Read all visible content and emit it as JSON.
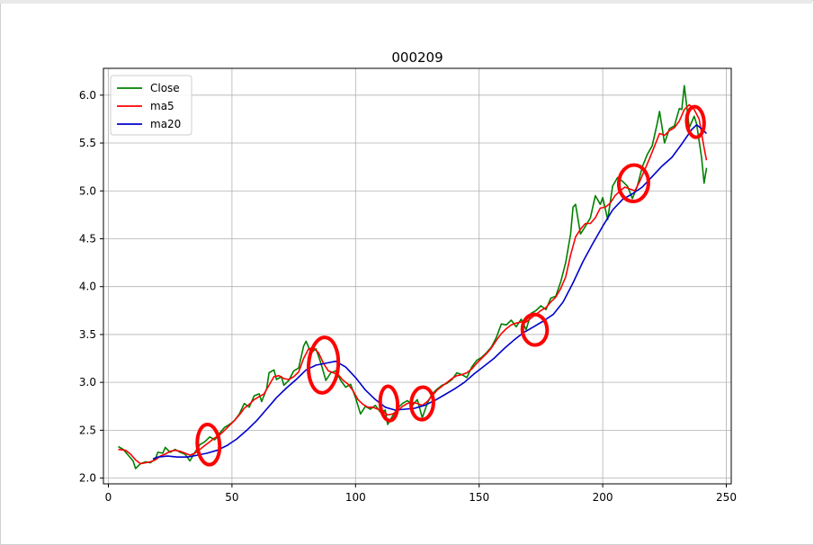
{
  "chart_data": {
    "type": "line",
    "title": "000209",
    "xlabel": "",
    "ylabel": "",
    "xlim": [
      -2,
      252
    ],
    "ylim": [
      1.94,
      6.28
    ],
    "xticks": [
      0,
      50,
      100,
      150,
      200,
      250
    ],
    "yticks": [
      2.0,
      2.5,
      3.0,
      3.5,
      4.0,
      4.5,
      5.0,
      5.5,
      6.0
    ],
    "grid": true,
    "legend_position": "upper-left",
    "series": [
      {
        "name": "Close",
        "color": "#008000",
        "points": [
          [
            4,
            2.33
          ],
          [
            6,
            2.3
          ],
          [
            8,
            2.24
          ],
          [
            10,
            2.18
          ],
          [
            11,
            2.1
          ],
          [
            13,
            2.15
          ],
          [
            15,
            2.17
          ],
          [
            17,
            2.16
          ],
          [
            19,
            2.2
          ],
          [
            20,
            2.27
          ],
          [
            22,
            2.26
          ],
          [
            23,
            2.32
          ],
          [
            25,
            2.27
          ],
          [
            27,
            2.3
          ],
          [
            29,
            2.27
          ],
          [
            31,
            2.25
          ],
          [
            33,
            2.18
          ],
          [
            35,
            2.27
          ],
          [
            37,
            2.35
          ],
          [
            39,
            2.38
          ],
          [
            41,
            2.43
          ],
          [
            43,
            2.4
          ],
          [
            45,
            2.47
          ],
          [
            47,
            2.53
          ],
          [
            49,
            2.56
          ],
          [
            51,
            2.6
          ],
          [
            53,
            2.67
          ],
          [
            55,
            2.78
          ],
          [
            57,
            2.74
          ],
          [
            59,
            2.86
          ],
          [
            61,
            2.88
          ],
          [
            62,
            2.8
          ],
          [
            64,
            2.93
          ],
          [
            65,
            3.1
          ],
          [
            67,
            3.13
          ],
          [
            68,
            3.03
          ],
          [
            70,
            3.06
          ],
          [
            71,
            2.97
          ],
          [
            73,
            3.02
          ],
          [
            75,
            3.12
          ],
          [
            77,
            3.15
          ],
          [
            79,
            3.38
          ],
          [
            80,
            3.43
          ],
          [
            82,
            3.31
          ],
          [
            84,
            3.35
          ],
          [
            86,
            3.2
          ],
          [
            88,
            3.02
          ],
          [
            90,
            3.1
          ],
          [
            92,
            3.12
          ],
          [
            94,
            3.02
          ],
          [
            96,
            2.95
          ],
          [
            98,
            2.98
          ],
          [
            100,
            2.84
          ],
          [
            102,
            2.67
          ],
          [
            104,
            2.75
          ],
          [
            106,
            2.72
          ],
          [
            108,
            2.76
          ],
          [
            110,
            2.69
          ],
          [
            112,
            2.71
          ],
          [
            113,
            2.56
          ],
          [
            115,
            2.65
          ],
          [
            117,
            2.73
          ],
          [
            119,
            2.78
          ],
          [
            121,
            2.81
          ],
          [
            123,
            2.76
          ],
          [
            125,
            2.82
          ],
          [
            127,
            2.63
          ],
          [
            129,
            2.78
          ],
          [
            131,
            2.88
          ],
          [
            133,
            2.93
          ],
          [
            135,
            2.97
          ],
          [
            137,
            2.99
          ],
          [
            139,
            3.03
          ],
          [
            141,
            3.1
          ],
          [
            143,
            3.08
          ],
          [
            145,
            3.05
          ],
          [
            147,
            3.16
          ],
          [
            149,
            3.23
          ],
          [
            151,
            3.26
          ],
          [
            153,
            3.31
          ],
          [
            155,
            3.37
          ],
          [
            157,
            3.47
          ],
          [
            159,
            3.61
          ],
          [
            161,
            3.6
          ],
          [
            163,
            3.65
          ],
          [
            165,
            3.58
          ],
          [
            167,
            3.66
          ],
          [
            169,
            3.55
          ],
          [
            171,
            3.72
          ],
          [
            173,
            3.75
          ],
          [
            175,
            3.8
          ],
          [
            177,
            3.76
          ],
          [
            179,
            3.88
          ],
          [
            181,
            3.9
          ],
          [
            183,
            4.05
          ],
          [
            185,
            4.25
          ],
          [
            187,
            4.55
          ],
          [
            188,
            4.83
          ],
          [
            189,
            4.86
          ],
          [
            191,
            4.55
          ],
          [
            193,
            4.63
          ],
          [
            195,
            4.72
          ],
          [
            197,
            4.95
          ],
          [
            199,
            4.86
          ],
          [
            200,
            4.93
          ],
          [
            202,
            4.7
          ],
          [
            204,
            5.05
          ],
          [
            206,
            5.14
          ],
          [
            208,
            5.1
          ],
          [
            210,
            5.05
          ],
          [
            212,
            4.92
          ],
          [
            214,
            5.05
          ],
          [
            216,
            5.25
          ],
          [
            218,
            5.38
          ],
          [
            220,
            5.47
          ],
          [
            222,
            5.7
          ],
          [
            223,
            5.83
          ],
          [
            225,
            5.5
          ],
          [
            227,
            5.65
          ],
          [
            229,
            5.68
          ],
          [
            231,
            5.86
          ],
          [
            232,
            5.85
          ],
          [
            233,
            6.1
          ],
          [
            235,
            5.66
          ],
          [
            237,
            5.78
          ],
          [
            238,
            5.7
          ],
          [
            239,
            5.52
          ],
          [
            240,
            5.35
          ],
          [
            241,
            5.08
          ],
          [
            242,
            5.24
          ]
        ]
      },
      {
        "name": "ma5",
        "color": "#ff0000",
        "points": [
          [
            4,
            2.3
          ],
          [
            7,
            2.29
          ],
          [
            9,
            2.25
          ],
          [
            11,
            2.19
          ],
          [
            13,
            2.15
          ],
          [
            15,
            2.16
          ],
          [
            17,
            2.17
          ],
          [
            19,
            2.19
          ],
          [
            21,
            2.23
          ],
          [
            23,
            2.25
          ],
          [
            25,
            2.28
          ],
          [
            27,
            2.29
          ],
          [
            29,
            2.28
          ],
          [
            31,
            2.26
          ],
          [
            33,
            2.24
          ],
          [
            35,
            2.26
          ],
          [
            37,
            2.3
          ],
          [
            39,
            2.34
          ],
          [
            41,
            2.38
          ],
          [
            43,
            2.42
          ],
          [
            45,
            2.45
          ],
          [
            47,
            2.5
          ],
          [
            49,
            2.55
          ],
          [
            51,
            2.6
          ],
          [
            53,
            2.66
          ],
          [
            55,
            2.73
          ],
          [
            57,
            2.77
          ],
          [
            59,
            2.82
          ],
          [
            61,
            2.85
          ],
          [
            63,
            2.88
          ],
          [
            65,
            2.97
          ],
          [
            67,
            3.06
          ],
          [
            69,
            3.07
          ],
          [
            71,
            3.04
          ],
          [
            73,
            3.03
          ],
          [
            75,
            3.06
          ],
          [
            77,
            3.11
          ],
          [
            79,
            3.25
          ],
          [
            81,
            3.35
          ],
          [
            83,
            3.36
          ],
          [
            85,
            3.31
          ],
          [
            87,
            3.2
          ],
          [
            89,
            3.12
          ],
          [
            91,
            3.1
          ],
          [
            93,
            3.08
          ],
          [
            95,
            3.02
          ],
          [
            97,
            2.98
          ],
          [
            99,
            2.91
          ],
          [
            101,
            2.82
          ],
          [
            103,
            2.77
          ],
          [
            105,
            2.74
          ],
          [
            107,
            2.74
          ],
          [
            109,
            2.72
          ],
          [
            111,
            2.7
          ],
          [
            113,
            2.66
          ],
          [
            115,
            2.67
          ],
          [
            117,
            2.7
          ],
          [
            119,
            2.75
          ],
          [
            121,
            2.78
          ],
          [
            123,
            2.79
          ],
          [
            125,
            2.78
          ],
          [
            127,
            2.76
          ],
          [
            129,
            2.8
          ],
          [
            131,
            2.86
          ],
          [
            133,
            2.92
          ],
          [
            135,
            2.96
          ],
          [
            137,
            3.0
          ],
          [
            139,
            3.04
          ],
          [
            141,
            3.07
          ],
          [
            143,
            3.08
          ],
          [
            145,
            3.1
          ],
          [
            147,
            3.14
          ],
          [
            149,
            3.2
          ],
          [
            151,
            3.25
          ],
          [
            153,
            3.3
          ],
          [
            155,
            3.36
          ],
          [
            157,
            3.44
          ],
          [
            159,
            3.51
          ],
          [
            161,
            3.56
          ],
          [
            163,
            3.6
          ],
          [
            165,
            3.62
          ],
          [
            167,
            3.63
          ],
          [
            169,
            3.63
          ],
          [
            171,
            3.67
          ],
          [
            173,
            3.71
          ],
          [
            175,
            3.75
          ],
          [
            177,
            3.78
          ],
          [
            179,
            3.84
          ],
          [
            181,
            3.89
          ],
          [
            183,
            3.98
          ],
          [
            185,
            4.1
          ],
          [
            187,
            4.33
          ],
          [
            189,
            4.52
          ],
          [
            191,
            4.6
          ],
          [
            193,
            4.66
          ],
          [
            195,
            4.66
          ],
          [
            197,
            4.72
          ],
          [
            199,
            4.82
          ],
          [
            201,
            4.83
          ],
          [
            203,
            4.87
          ],
          [
            205,
            4.95
          ],
          [
            207,
            5.0
          ],
          [
            209,
            5.04
          ],
          [
            211,
            5.02
          ],
          [
            213,
            5.0
          ],
          [
            215,
            5.1
          ],
          [
            217,
            5.22
          ],
          [
            219,
            5.34
          ],
          [
            221,
            5.47
          ],
          [
            223,
            5.6
          ],
          [
            225,
            5.58
          ],
          [
            227,
            5.63
          ],
          [
            229,
            5.66
          ],
          [
            231,
            5.73
          ],
          [
            233,
            5.85
          ],
          [
            235,
            5.9
          ],
          [
            237,
            5.85
          ],
          [
            239,
            5.75
          ],
          [
            241,
            5.45
          ],
          [
            242,
            5.32
          ]
        ]
      },
      {
        "name": "ma20",
        "color": "#0000cd",
        "points": [
          [
            18,
            2.2
          ],
          [
            20,
            2.22
          ],
          [
            24,
            2.23
          ],
          [
            28,
            2.22
          ],
          [
            32,
            2.22
          ],
          [
            36,
            2.24
          ],
          [
            40,
            2.26
          ],
          [
            44,
            2.29
          ],
          [
            48,
            2.34
          ],
          [
            52,
            2.41
          ],
          [
            56,
            2.5
          ],
          [
            60,
            2.6
          ],
          [
            64,
            2.72
          ],
          [
            68,
            2.84
          ],
          [
            72,
            2.94
          ],
          [
            76,
            3.03
          ],
          [
            80,
            3.13
          ],
          [
            84,
            3.18
          ],
          [
            88,
            3.2
          ],
          [
            92,
            3.22
          ],
          [
            96,
            3.16
          ],
          [
            100,
            3.05
          ],
          [
            104,
            2.92
          ],
          [
            108,
            2.82
          ],
          [
            112,
            2.74
          ],
          [
            116,
            2.71
          ],
          [
            120,
            2.72
          ],
          [
            124,
            2.73
          ],
          [
            128,
            2.76
          ],
          [
            132,
            2.81
          ],
          [
            136,
            2.87
          ],
          [
            140,
            2.93
          ],
          [
            144,
            3.0
          ],
          [
            148,
            3.09
          ],
          [
            152,
            3.17
          ],
          [
            156,
            3.25
          ],
          [
            160,
            3.35
          ],
          [
            164,
            3.44
          ],
          [
            168,
            3.52
          ],
          [
            172,
            3.58
          ],
          [
            176,
            3.64
          ],
          [
            180,
            3.71
          ],
          [
            184,
            3.84
          ],
          [
            188,
            4.04
          ],
          [
            192,
            4.26
          ],
          [
            196,
            4.45
          ],
          [
            200,
            4.63
          ],
          [
            204,
            4.8
          ],
          [
            208,
            4.91
          ],
          [
            212,
            4.97
          ],
          [
            216,
            5.04
          ],
          [
            220,
            5.15
          ],
          [
            224,
            5.26
          ],
          [
            228,
            5.35
          ],
          [
            232,
            5.49
          ],
          [
            236,
            5.64
          ],
          [
            238,
            5.69
          ],
          [
            240,
            5.65
          ],
          [
            242,
            5.6
          ]
        ]
      }
    ],
    "annotations": {
      "color": "#ff0000",
      "note": "hand-drawn red circles marking crossover regions",
      "marks": [
        {
          "cx": 40.5,
          "cy": 2.35,
          "rx": 4.5,
          "ry": 0.21
        },
        {
          "cx": 87,
          "cy": 3.18,
          "rx": 6,
          "ry": 0.29
        },
        {
          "cx": 113.5,
          "cy": 2.78,
          "rx": 3.5,
          "ry": 0.18
        },
        {
          "cx": 127,
          "cy": 2.78,
          "rx": 4.5,
          "ry": 0.17
        },
        {
          "cx": 172.5,
          "cy": 3.55,
          "rx": 5,
          "ry": 0.16
        },
        {
          "cx": 212.5,
          "cy": 5.08,
          "rx": 6,
          "ry": 0.19
        },
        {
          "cx": 237.5,
          "cy": 5.72,
          "rx": 3.5,
          "ry": 0.16
        }
      ]
    }
  }
}
